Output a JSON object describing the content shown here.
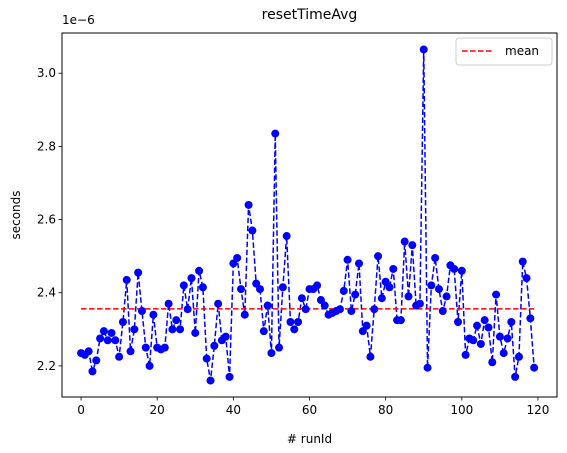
{
  "chart_data": {
    "type": "line",
    "title": "resetTimeAvg",
    "xlabel": "# runId",
    "ylabel": "seconds",
    "offset_text": "1e−6",
    "xlim": [
      -5,
      125
    ],
    "ylim": [
      2.115,
      3.11
    ],
    "xticks": [
      0,
      20,
      40,
      60,
      80,
      100,
      120
    ],
    "yticks": [
      2.2,
      2.4,
      2.6,
      2.8,
      3.0
    ],
    "ytick_labels": [
      "2.2",
      "2.4",
      "2.6",
      "2.8",
      "3.0"
    ],
    "grid": false,
    "legend_position": "top-right",
    "series": [
      {
        "color": "#0000ff",
        "style": "dashed line with circle markers",
        "x": [
          0,
          1,
          2,
          3,
          4,
          5,
          6,
          7,
          8,
          9,
          10,
          11,
          12,
          13,
          14,
          15,
          16,
          17,
          18,
          19,
          20,
          21,
          22,
          23,
          24,
          25,
          26,
          27,
          28,
          29,
          30,
          31,
          32,
          33,
          34,
          35,
          36,
          37,
          38,
          39,
          40,
          41,
          42,
          43,
          44,
          45,
          46,
          47,
          48,
          49,
          50,
          51,
          52,
          53,
          54,
          55,
          56,
          57,
          58,
          59,
          60,
          61,
          62,
          63,
          64,
          65,
          66,
          67,
          68,
          69,
          70,
          71,
          72,
          73,
          74,
          75,
          76,
          77,
          78,
          79,
          80,
          81,
          82,
          83,
          84,
          85,
          86,
          87,
          88,
          89,
          90,
          91,
          92,
          93,
          94,
          95,
          96,
          97,
          98,
          99,
          100,
          101,
          102,
          103,
          104,
          105,
          106,
          107,
          108,
          109,
          110,
          111,
          112,
          113,
          114,
          115,
          116,
          117,
          118,
          119
        ],
        "y": [
          2.235,
          2.23,
          2.24,
          2.185,
          2.215,
          2.275,
          2.295,
          2.27,
          2.29,
          2.27,
          2.225,
          2.32,
          2.435,
          2.24,
          2.3,
          2.455,
          2.35,
          2.25,
          2.2,
          2.34,
          2.25,
          2.245,
          2.25,
          2.37,
          2.3,
          2.325,
          2.3,
          2.42,
          2.355,
          2.44,
          2.29,
          2.46,
          2.415,
          2.22,
          2.16,
          2.255,
          2.37,
          2.27,
          2.28,
          2.17,
          2.48,
          2.495,
          2.41,
          2.34,
          2.64,
          2.57,
          2.425,
          2.41,
          2.295,
          2.365,
          2.235,
          2.835,
          2.25,
          2.415,
          2.555,
          2.32,
          2.3,
          2.32,
          2.385,
          2.355,
          2.41,
          2.41,
          2.42,
          2.38,
          2.365,
          2.34,
          2.345,
          2.35,
          2.355,
          2.405,
          2.49,
          2.35,
          2.395,
          2.48,
          2.295,
          2.31,
          2.225,
          2.355,
          2.5,
          2.385,
          2.43,
          2.415,
          2.465,
          2.325,
          2.325,
          2.54,
          2.39,
          2.53,
          2.365,
          2.37,
          3.065,
          2.195,
          2.42,
          2.495,
          2.41,
          2.35,
          2.39,
          2.475,
          2.465,
          2.32,
          2.46,
          2.23,
          2.275,
          2.27,
          2.31,
          2.26,
          2.325,
          2.305,
          2.21,
          2.395,
          2.28,
          2.235,
          2.275,
          2.32,
          2.17,
          2.225,
          2.485,
          2.44,
          2.33,
          2.195
        ]
      },
      {
        "name": "mean",
        "color": "#ff0000",
        "style": "dashed line",
        "x": [
          0,
          119
        ],
        "y": [
          2.356,
          2.356
        ]
      }
    ]
  }
}
